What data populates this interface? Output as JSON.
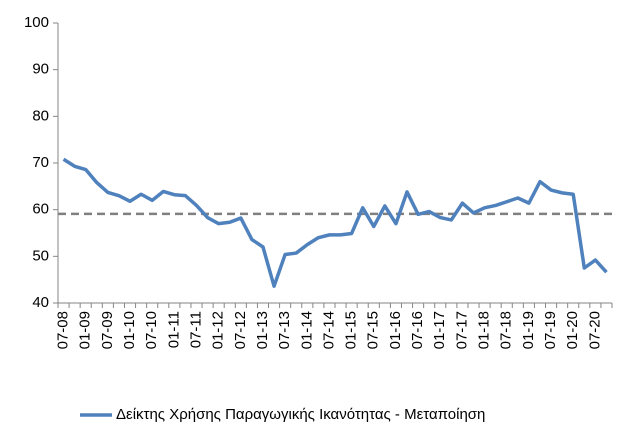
{
  "chart_data": {
    "type": "line",
    "categories": [
      "07-08",
      null,
      "01-09",
      null,
      "07-09",
      null,
      "01-10",
      null,
      "07-10",
      null,
      "01-11",
      null,
      "07-11",
      null,
      "01-12",
      null,
      "07-12",
      null,
      "01-13",
      null,
      "07-13",
      null,
      "01-14",
      null,
      "07-14",
      null,
      "01-15",
      null,
      "07-15",
      null,
      "01-16",
      null,
      "07-16",
      null,
      "01-17",
      null,
      "07-17",
      null,
      "01-18",
      null,
      "07-18",
      null,
      "01-19",
      null,
      "07-19",
      null,
      "01-20",
      null,
      "07-20",
      null
    ],
    "series": [
      {
        "name": "Δείκτης Χρήσης Παραγωγικής Ικανότητας - Μεταποίηση",
        "color": "#4f81bd",
        "values": [
          70.8,
          69.3,
          68.6,
          65.8,
          63.7,
          63.0,
          61.8,
          63.3,
          62.0,
          63.9,
          63.2,
          63.0,
          60.9,
          58.3,
          57.0,
          57.3,
          58.2,
          53.6,
          52.0,
          43.6,
          50.4,
          50.7,
          52.5,
          54.0,
          54.6,
          54.6,
          54.9,
          60.4,
          56.4,
          60.8,
          57.0,
          63.8,
          59.0,
          59.6,
          58.3,
          57.8,
          61.4,
          59.3,
          60.4,
          60.9,
          61.7,
          62.5,
          61.4,
          66.0,
          64.2,
          63.6,
          63.3,
          47.5,
          49.2,
          46.6
        ]
      }
    ],
    "reference_line": {
      "value": 59.1,
      "color": "#808080"
    },
    "ylim": [
      40,
      100
    ],
    "yticks": [
      40,
      50,
      60,
      70,
      80,
      90,
      100
    ],
    "grid": false,
    "legend": "bottom"
  }
}
